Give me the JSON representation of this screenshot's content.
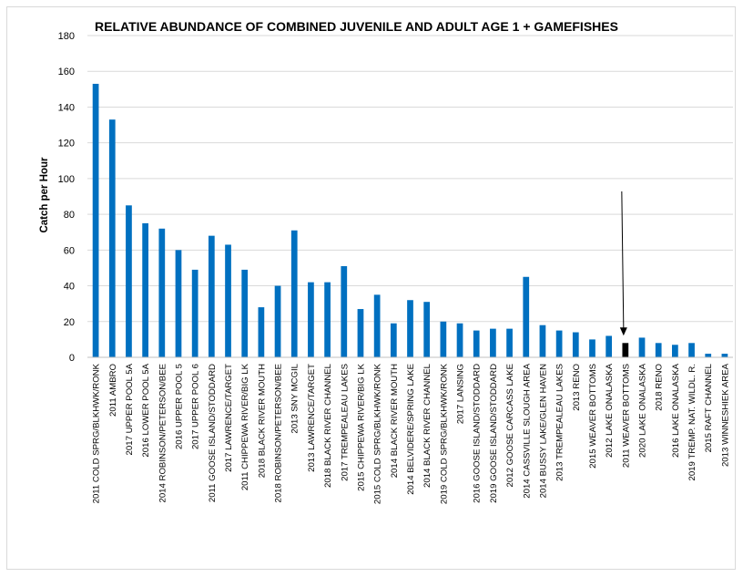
{
  "chart_data": {
    "type": "bar",
    "title": "RELATIVE ABUNDANCE OF COMBINED JUVENILE AND ADULT AGE 1 + GAMEFISHES",
    "ylabel": "Catch per Hour",
    "xlabel": "",
    "ylim": [
      0,
      180
    ],
    "yticks": [
      0,
      20,
      40,
      60,
      80,
      100,
      120,
      140,
      160,
      180
    ],
    "grid": true,
    "bar_color": "#0070c0",
    "highlight_color": "#000000",
    "highlight_index": 32,
    "annotation": "arrow pointing to highlighted bar",
    "categories": [
      "2011 COLD SPRG/BLKHWK/RONK",
      "2011 AMBRO",
      "2017 UPPER POOL 5A",
      "2016 LOWER POOL 5A",
      "2014 ROBINSON/PETERSON/BEE",
      "2016 UPPER POOL 5",
      "2017 UPPER POOL 6",
      "2011 GOOSE ISLAND/STODDARD",
      "2017 LAWRENCE/TARGET",
      "2011 CHIPPEWA RIVER/BIG LK",
      "2018 BLACK RIVER MOUTH",
      "2018 ROBINSON/PETERSON/BEE",
      "2013 SNY MCGIL",
      "2013 LAWRENCE/TARGET",
      "2018 BLACK RIVER CHANNEL",
      "2017 TREMPEALEAU LAKES",
      "2015 CHIPPEWA RIVER/BIG LK",
      "2015 COLD SPRG/BLKHWK/RONK",
      "2014 BLACK RIVER MOUTH",
      "2014 BELVIDERE/SPRING LAKE",
      "2014 BLACK RIVER CHANNEL",
      "2019 COLD SPRG/BLKHWK/RONK",
      "2017 LANSING",
      "2016 GOOSE ISLAND/STODDARD",
      "2019 GOOSE ISLAND/STODDARD",
      "2012 GOOSE CARCASS LAKE",
      "2014 CASSVILLE SLOUGH AREA",
      "2014 BUSSY LAKE/GLEN HAVEN",
      "2013 TREMPEALEAU LAKES",
      "2013 RENO",
      "2015 WEAVER BOTTOMS",
      "2012 LAKE ONALASKA",
      "2011 WEAVER BOTTOMS",
      "2020 LAKE ONALASKA",
      "2018 RENO",
      "2016 LAKE ONALASKA",
      "2019 TREMP. NAT. WILDL. R.",
      "2015 RAFT CHANNEL",
      "2013 WINNESHIEK AREA"
    ],
    "values": [
      153,
      133,
      85,
      75,
      72,
      60,
      49,
      68,
      63,
      49,
      28,
      40,
      71,
      42,
      42,
      51,
      27,
      35,
      19,
      32,
      31,
      20,
      19,
      15,
      16,
      16,
      45,
      18,
      15,
      14,
      10,
      12,
      8,
      11,
      8,
      7,
      8,
      2,
      2
    ]
  }
}
